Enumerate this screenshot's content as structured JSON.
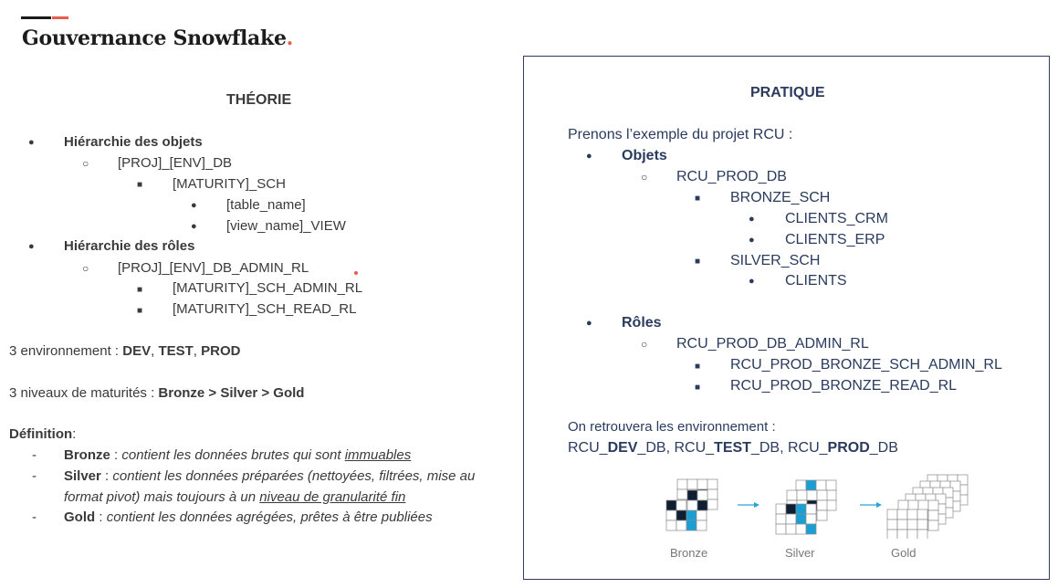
{
  "page": {
    "title": "Gouvernance Snowflake",
    "title_dot": "."
  },
  "theory": {
    "heading": "THÉORIE",
    "objects_heading": "Hiérarchie des objets",
    "objects": {
      "db": "[PROJ]_[ENV]_DB",
      "schema": "[MATURITY]_SCH",
      "table": "[table_name]",
      "view": "[view_name]_VIEW"
    },
    "roles_heading": "Hiérarchie des rôles",
    "roles": {
      "db_admin": "[PROJ]_[ENV]_DB_ADMIN_RL",
      "sch_admin": "[MATURITY]_SCH_ADMIN_RL",
      "sch_read": "[MATURITY]_SCH_READ_RL"
    },
    "env_prefix": "3 environnement : ",
    "env_dev": "DEV",
    "env_sep1": ", ",
    "env_test": "TEST",
    "env_sep2": ", ",
    "env_prod": "PROD",
    "maturity_prefix": "3 niveaux de maturités : ",
    "maturity_levels": "Bronze > Silver > Gold",
    "definition_label": "Définition",
    "definition_colon": ":",
    "dash": "-",
    "bronze_label": "Bronze",
    "bronze_sep": " : ",
    "bronze_text": "contient les données brutes qui sont ",
    "bronze_underlined": "immuables",
    "silver_label": "Silver",
    "silver_sep": " : ",
    "silver_text_1": "contient les données préparées (nettoyées, filtrées, mise au",
    "silver_text_2": "format pivot) mais toujours à un ",
    "silver_underlined": "niveau de granularité fin",
    "gold_label": "Gold",
    "gold_sep": " : ",
    "gold_text": "contient les données agrégées, prêtes à être publiées"
  },
  "practice": {
    "heading": "PRATIQUE",
    "intro": "Prenons l’exemple du projet RCU :",
    "objects_heading": "Objets",
    "db": "RCU_PROD_DB",
    "bronze_sch": "BRONZE_SCH",
    "clients_crm": "CLIENTS_CRM",
    "clients_erp": "CLIENTS_ERP",
    "silver_sch": "SILVER_SCH",
    "clients": "CLIENTS",
    "roles_heading": "Rôles",
    "db_admin": "RCU_PROD_DB_ADMIN_RL",
    "bronze_admin": "RCU_PROD_BRONZE_SCH_ADMIN_RL",
    "bronze_read": "RCU_PROD_BRONZE_READ_RL",
    "env_intro": "On retrouvera les environnement :",
    "env_p1": "RCU_",
    "env_dev": "DEV",
    "env_p2": "_DB, RCU_",
    "env_test": "TEST",
    "env_p3": "_DB, RCU_",
    "env_prod": "PROD",
    "env_p4": "_DB"
  },
  "figure": {
    "bronze_label": "Bronze",
    "silver_label": "Silver",
    "gold_label": "Gold",
    "arrow_color": "#29a3d6",
    "dark_cell_color": "#0f1e33",
    "blue_cell_color": "#1a9fd4"
  },
  "bullets": {
    "disc": "●",
    "circle": "○",
    "square": "■"
  }
}
